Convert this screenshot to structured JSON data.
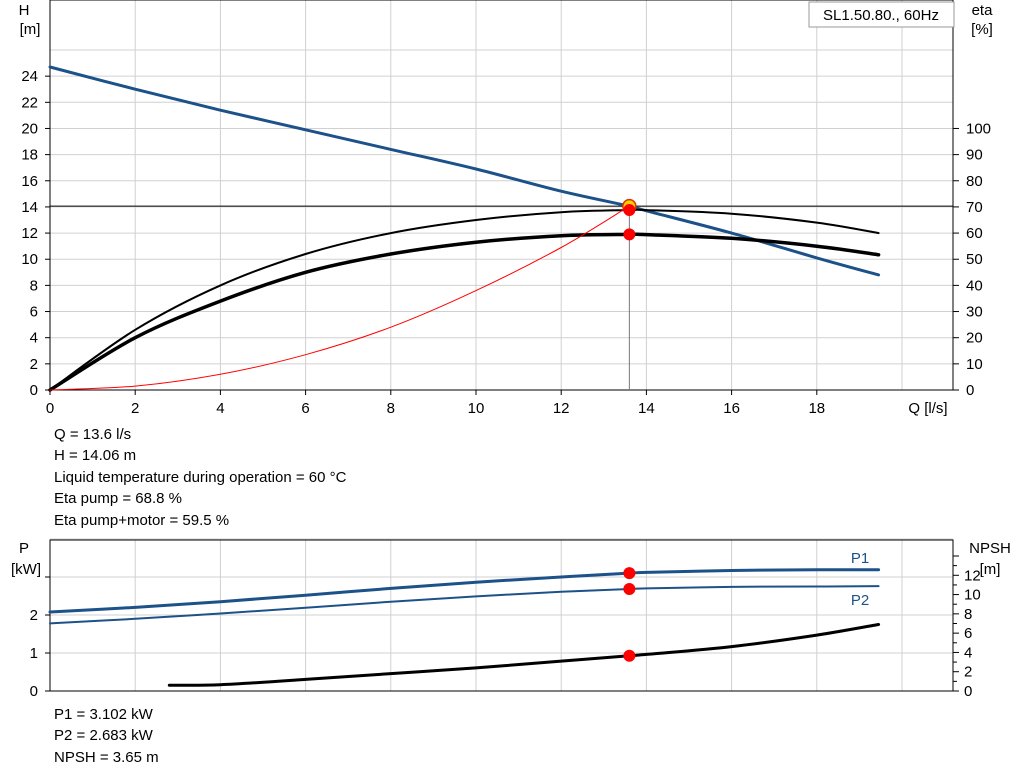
{
  "chart_data": [
    {
      "type": "line",
      "title": "SL1.50.80., 60Hz",
      "xlabel": "Q [l/s]",
      "ylabel": "H [m]",
      "y2label": "eta [%]",
      "xlim": [
        0,
        20
      ],
      "ylim": [
        0,
        26
      ],
      "y2lim": [
        0,
        130
      ],
      "xticks": [
        0,
        2,
        4,
        6,
        8,
        10,
        12,
        14,
        16,
        18
      ],
      "yticks": [
        0,
        2,
        4,
        6,
        8,
        10,
        12,
        14,
        16,
        18,
        20,
        22,
        24
      ],
      "y2ticks": [
        0,
        10,
        20,
        30,
        40,
        50,
        60,
        70,
        80,
        90,
        100
      ],
      "grid": true,
      "series": [
        {
          "key": "head",
          "axis": "left",
          "color": "#1c5289",
          "x": [
            0,
            2,
            4,
            6,
            8,
            10,
            12,
            13.6,
            14,
            16,
            18,
            19.45
          ],
          "y": [
            24.7,
            23.0,
            21.4,
            19.9,
            18.4,
            16.9,
            15.2,
            14.06,
            13.7,
            12.0,
            10.1,
            8.8
          ]
        },
        {
          "key": "eta_pump",
          "axis": "right",
          "color": "#000000",
          "x": [
            0,
            2,
            4,
            6,
            8,
            10,
            12,
            13.6,
            14,
            16,
            18,
            19.45
          ],
          "y": [
            0,
            23,
            40,
            52,
            60,
            65,
            68,
            68.8,
            68.8,
            67.4,
            64,
            60
          ]
        },
        {
          "key": "eta_total",
          "axis": "right",
          "color": "#000000",
          "x": [
            0,
            2,
            4,
            6,
            8,
            10,
            12,
            13.6,
            14,
            16,
            18,
            19.45
          ],
          "y": [
            0,
            20,
            34,
            45,
            52,
            56.5,
            59,
            59.5,
            59.4,
            58,
            55,
            51.7
          ]
        },
        {
          "key": "system",
          "axis": "left",
          "color": "#ff0000",
          "x": [
            0,
            2,
            4,
            6,
            8,
            10,
            12,
            13.6
          ],
          "y": [
            0,
            0.3,
            1.2,
            2.7,
            4.8,
            7.6,
            10.9,
            14.06
          ]
        }
      ],
      "operating_point": {
        "x": 13.6,
        "head": 14.06,
        "eta_pump": 68.8,
        "eta_total": 59.5
      }
    },
    {
      "type": "line",
      "xlim": [
        0,
        20
      ],
      "ylabel": "P [kW]",
      "y2label": "NPSH [m]",
      "ylim": [
        0,
        4
      ],
      "y2lim": [
        0,
        14
      ],
      "yticks": [
        0,
        1,
        2
      ],
      "y2ticks": [
        0,
        2,
        4,
        6,
        8,
        10,
        12
      ],
      "grid": true,
      "series": [
        {
          "name": "P1",
          "axis": "left",
          "color": "#1c5289",
          "x": [
            0,
            2,
            4,
            6,
            8,
            10,
            12,
            13.6,
            14,
            16,
            18,
            19.45
          ],
          "y": [
            2.08,
            2.2,
            2.35,
            2.52,
            2.7,
            2.86,
            3.0,
            3.102,
            3.12,
            3.17,
            3.19,
            3.19
          ]
        },
        {
          "name": "P2",
          "axis": "left",
          "color": "#1c5289",
          "x": [
            0,
            2,
            4,
            6,
            8,
            10,
            12,
            13.6,
            14,
            16,
            18,
            19.45
          ],
          "y": [
            1.78,
            1.9,
            2.04,
            2.19,
            2.35,
            2.49,
            2.61,
            2.683,
            2.7,
            2.74,
            2.75,
            2.76
          ]
        },
        {
          "key": "npsh",
          "axis": "right",
          "color": "#000000",
          "x": [
            2.8,
            4,
            6,
            8,
            10,
            12,
            13.6,
            14,
            16,
            18,
            19.45
          ],
          "y": [
            0.6,
            0.65,
            1.2,
            1.8,
            2.4,
            3.1,
            3.65,
            3.8,
            4.6,
            5.8,
            6.9
          ]
        }
      ],
      "operating_point": {
        "x": 13.6,
        "P1": 3.102,
        "P2": 2.683,
        "npsh": 3.65
      }
    }
  ],
  "chart1_labels": {
    "h_label": "H",
    "h_unit": "[m]",
    "eta_label": "eta",
    "eta_unit": "[%]",
    "q_label": "Q [l/s]",
    "title": "SL1.50.80., 60Hz"
  },
  "chart2_labels": {
    "p_label": "P",
    "p_unit": "[kW]",
    "npsh_label": "NPSH",
    "npsh_unit": "[m]",
    "p1_label": "P1",
    "p2_label": "P2"
  },
  "info_top": [
    "Q = 13.6 l/s",
    "H = 14.06 m",
    "Liquid temperature during operation = 60 °C",
    "Eta pump = 68.8 %",
    "Eta pump+motor = 59.5 %"
  ],
  "info_bottom": [
    "P1 = 3.102 kW",
    "P2 = 2.683 kW",
    "NPSH = 3.65 m"
  ]
}
